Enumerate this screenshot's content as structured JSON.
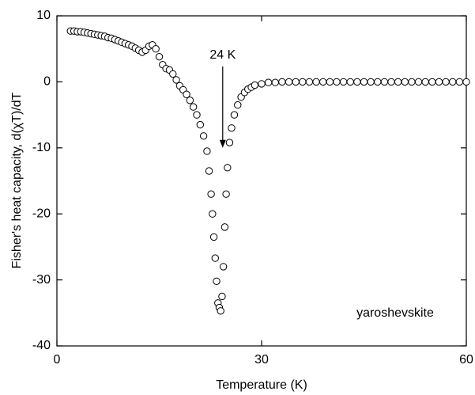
{
  "chart_data": {
    "type": "scatter",
    "x_label": "Temperature (K)",
    "y_label": "Fisher's heat capacity, d(χT)/dT",
    "xlim": [
      0,
      60
    ],
    "xticks": [
      0,
      30,
      60
    ],
    "ylim": [
      -40,
      10
    ],
    "yticks": [
      -40,
      -30,
      -20,
      -10,
      0,
      10
    ],
    "annotations": [
      {
        "text": "24 K",
        "x": 24.3,
        "y": -10
      }
    ],
    "label": "yaroshevskite",
    "series": [
      {
        "color": "#000000",
        "x": [
          2,
          2.5,
          3,
          3.5,
          4,
          4.5,
          5,
          5.5,
          6,
          6.5,
          7,
          7.5,
          8,
          8.5,
          9,
          9.5,
          10,
          10.5,
          11,
          11.5,
          12,
          12.5,
          13,
          13.5,
          14,
          14.5,
          15,
          15.5,
          16,
          16.5,
          17,
          17.5,
          18,
          18.5,
          19,
          19.5,
          20,
          20.5,
          21,
          21.5,
          22,
          22.3,
          22.6,
          22.8,
          23,
          23.2,
          23.4,
          23.6,
          23.8,
          24,
          24.2,
          24.4,
          24.6,
          24.8,
          25,
          25.3,
          25.6,
          26,
          26.5,
          27,
          27.5,
          28,
          28.5,
          29,
          30,
          31,
          32,
          33,
          34,
          35,
          36,
          37,
          38,
          39,
          40,
          41,
          42,
          43,
          44,
          45,
          46,
          47,
          48,
          49,
          50,
          51,
          52,
          53,
          54,
          55,
          56,
          57,
          58,
          59,
          60
        ],
        "values": [
          7.7,
          7.7,
          7.6,
          7.6,
          7.5,
          7.4,
          7.3,
          7.2,
          7.1,
          7.0,
          6.9,
          6.7,
          6.6,
          6.4,
          6.2,
          6.0,
          5.8,
          5.6,
          5.4,
          5.1,
          4.8,
          4.5,
          4.8,
          5.4,
          5.6,
          5.0,
          3.8,
          2.6,
          2.0,
          1.8,
          1.2,
          0.3,
          -0.6,
          -1.2,
          -1.9,
          -2.8,
          -3.8,
          -5.0,
          -6.5,
          -8.2,
          -10.5,
          -13.5,
          -17,
          -20,
          -23.5,
          -26.7,
          -30.2,
          -33.5,
          -34.2,
          -34.7,
          -32.5,
          -28,
          -22,
          -17,
          -13,
          -9.2,
          -7,
          -5,
          -3.5,
          -2.3,
          -1.6,
          -1.1,
          -0.8,
          -0.5,
          -0.3,
          -0.1,
          -0.1,
          0,
          0,
          0,
          0,
          0,
          0,
          0,
          0,
          0,
          0,
          0,
          0,
          0,
          0,
          0,
          0,
          0,
          0,
          0,
          0,
          0,
          0,
          0,
          0,
          0,
          0,
          0,
          0
        ]
      }
    ]
  }
}
